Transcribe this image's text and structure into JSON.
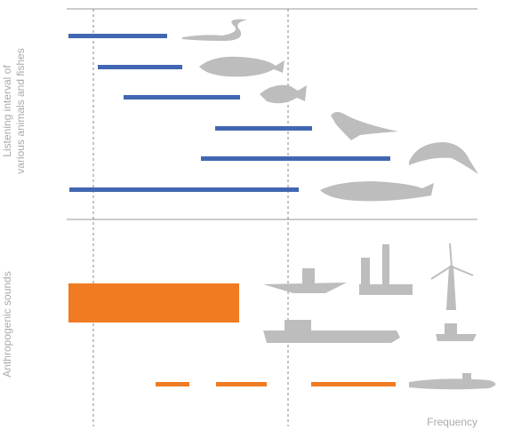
{
  "labels": {
    "animals_line1": "Listening interval of",
    "animals_line2": "various animals and fishes",
    "anthropogenic": "Anthropogenic sounds",
    "x_axis": "Frequency"
  }
}
